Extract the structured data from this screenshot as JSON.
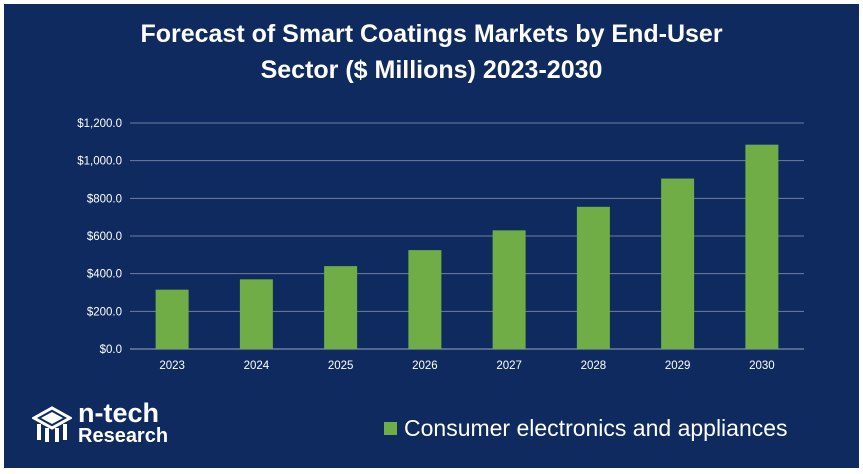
{
  "chart_data": {
    "type": "bar",
    "title": "Forecast of Smart Coatings Markets by End-User Sector ($ Millions) 2023-2030",
    "title_lines": [
      "Forecast of Smart Coatings Markets by End-User",
      "Sector ($ Millions) 2023-2030"
    ],
    "categories": [
      "2023",
      "2024",
      "2025",
      "2026",
      "2027",
      "2028",
      "2029",
      "2030"
    ],
    "series": [
      {
        "name": "Consumer electronics and appliances",
        "values": [
          315,
          370,
          440,
          525,
          630,
          755,
          905,
          1085
        ],
        "color": "#70ad47"
      }
    ],
    "yticks": [
      "$0.0",
      "$200.0",
      "$400.0",
      "$600.0",
      "$800.0",
      "$1,000.0",
      "$1,200.0"
    ],
    "ylim": [
      0,
      1200
    ],
    "grid": true,
    "legend": "bottom-right",
    "xlabel": "",
    "ylabel": ""
  },
  "logo": {
    "line1": "n-tech",
    "line2": "Research",
    "icon": "building-logo-icon"
  },
  "colors": {
    "background": "#0e2a5e",
    "bar": "#70ad47",
    "text": "#ffffff",
    "grid": "#6f7fa3"
  }
}
